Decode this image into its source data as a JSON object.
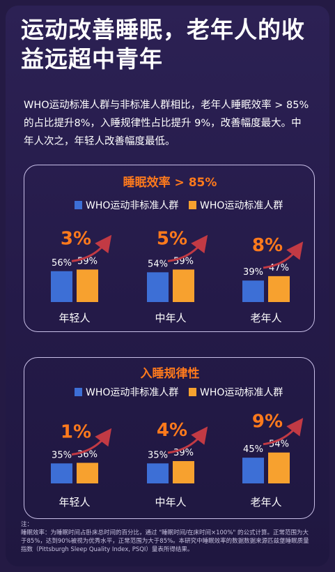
{
  "title": "运动改善睡眠，老年人的收益远超中青年",
  "lead": "WHO运动标准人群与非标准人群相比，老年人睡眠效率 > 85%的占比提升8%，入睡规律性占比提升 9%，改善幅度最大。中年人次之，年轻人改善幅度最低。",
  "colors": {
    "blue": "#3d6fd6",
    "orange": "#f7a12f",
    "accent": "#ff7a1c",
    "arrow": "#c23a44"
  },
  "chart_data": [
    {
      "type": "bar",
      "title": "睡眠效率 > 85%",
      "categories": [
        "年轻人",
        "中年人",
        "老年人"
      ],
      "series": [
        {
          "name": "WHO运动非标准人群",
          "values": [
            56,
            54,
            39
          ],
          "labels": [
            "56%",
            "54%",
            "39%"
          ]
        },
        {
          "name": "WHO运动标准人群",
          "values": [
            59,
            59,
            47
          ],
          "labels": [
            "59%",
            "59%",
            "47%"
          ]
        }
      ],
      "increase_labels": [
        "3%",
        "5%",
        "8%"
      ],
      "ylim": [
        0,
        100
      ],
      "legend": "top"
    },
    {
      "type": "bar",
      "title": "入睡规律性",
      "categories": [
        "年轻人",
        "中年人",
        "老年人"
      ],
      "series": [
        {
          "name": "WHO运动非标准人群",
          "values": [
            35,
            35,
            45
          ],
          "labels": [
            "35%",
            "35%",
            "45%"
          ]
        },
        {
          "name": "WHO运动标准人群",
          "values": [
            36,
            39,
            54
          ],
          "labels": [
            "36%",
            "39%",
            "54%"
          ]
        }
      ],
      "increase_labels": [
        "1%",
        "4%",
        "9%"
      ],
      "ylim": [
        0,
        100
      ],
      "legend": "top"
    }
  ],
  "footnote": "注：\n睡眠效率：为睡眠时间占卧床总时间的百分比，通过 \"睡眠时间/在床时间×100%\" 的公式计算。正常范围为大于85%，达到90%被视为优秀水平，正常范围为大于85%。本研究中睡眠效率的数据数据来源匹兹堡睡眠质量指数（Pittsburgh Sleep Quality Index, PSQI）量表所得结果。"
}
